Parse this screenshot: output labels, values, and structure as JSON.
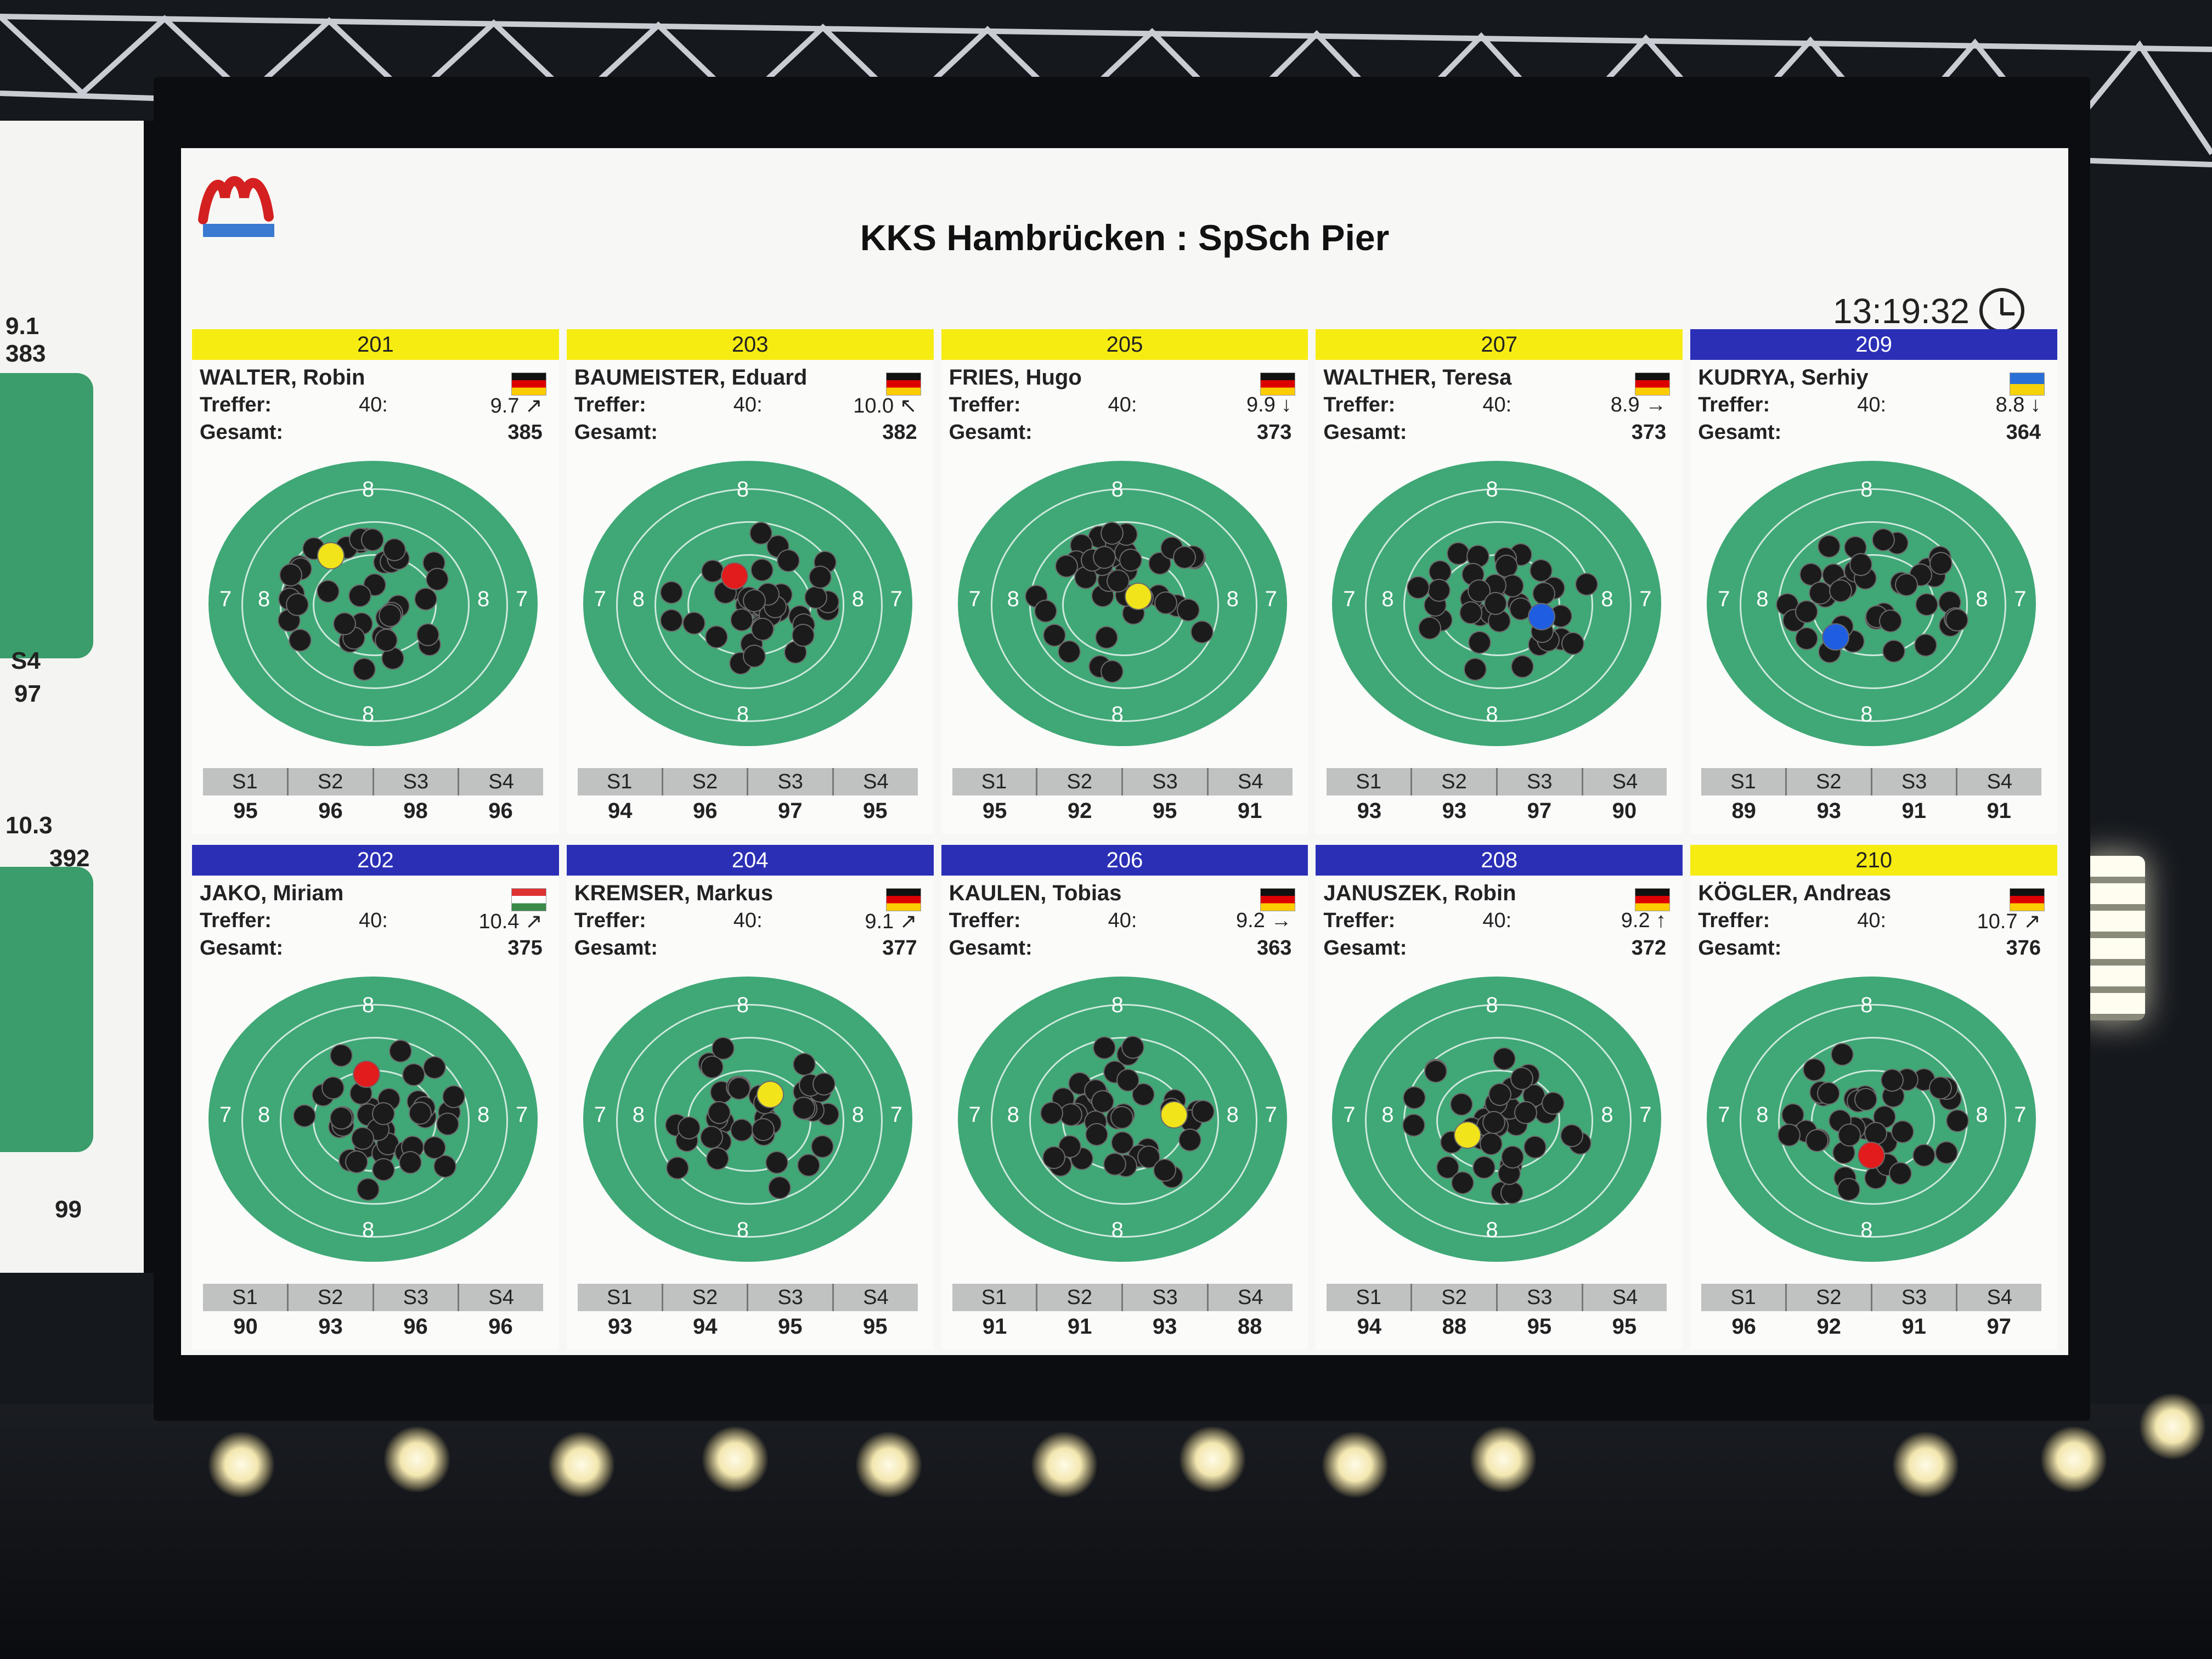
{
  "title": "KKS Hambrücken : SpSch Pier",
  "clock": "13:19:32",
  "series_labels": [
    "S1",
    "S2",
    "S3",
    "S4"
  ],
  "side_screen": {
    "last": "9.1",
    "total1": "383",
    "s4_label": "S4",
    "s4_a": "97",
    "last2": "10.3",
    "total2": "392",
    "s4_b": "99"
  },
  "lanes": [
    {
      "lane": "201",
      "team": "yellow",
      "name": "WALTER, Robin",
      "flag": "DE",
      "hits_label": "Treffer:",
      "hits": "40:",
      "last": "9.7",
      "last_trend": "↗",
      "total_label": "Gesamt:",
      "total": "385",
      "series": [
        "95",
        "96",
        "98",
        "96"
      ],
      "highlight": "#f2e41a"
    },
    {
      "lane": "203",
      "team": "yellow",
      "name": "BAUMEISTER, Eduard",
      "flag": "DE",
      "hits_label": "Treffer:",
      "hits": "40:",
      "last": "10.0",
      "last_trend": "↖",
      "total_label": "Gesamt:",
      "total": "382",
      "series": [
        "94",
        "96",
        "97",
        "95"
      ],
      "highlight": "#e21c1c"
    },
    {
      "lane": "205",
      "team": "yellow",
      "name": "FRIES, Hugo",
      "flag": "DE",
      "hits_label": "Treffer:",
      "hits": "40:",
      "last": "9.9",
      "last_trend": "↓",
      "total_label": "Gesamt:",
      "total": "373",
      "series": [
        "95",
        "92",
        "95",
        "91"
      ],
      "highlight": "#f2e41a"
    },
    {
      "lane": "207",
      "team": "yellow",
      "name": "WALTHER, Teresa",
      "flag": "DE",
      "hits_label": "Treffer:",
      "hits": "40:",
      "last": "8.9",
      "last_trend": "→",
      "total_label": "Gesamt:",
      "total": "373",
      "series": [
        "93",
        "93",
        "97",
        "90"
      ],
      "highlight": "#1f5ee0"
    },
    {
      "lane": "209",
      "team": "blue",
      "name": "KUDRYA, Serhiy",
      "flag": "UA",
      "hits_label": "Treffer:",
      "hits": "40:",
      "last": "8.8",
      "last_trend": "↓",
      "total_label": "Gesamt:",
      "total": "364",
      "series": [
        "89",
        "93",
        "91",
        "91"
      ],
      "highlight": "#1f5ee0"
    },
    {
      "lane": "202",
      "team": "blue",
      "name": "JAKO, Miriam",
      "flag": "HU",
      "hits_label": "Treffer:",
      "hits": "40:",
      "last": "10.4",
      "last_trend": "↗",
      "total_label": "Gesamt:",
      "total": "375",
      "series": [
        "90",
        "93",
        "96",
        "96"
      ],
      "highlight": "#e21c1c"
    },
    {
      "lane": "204",
      "team": "blue",
      "name": "KREMSER, Markus",
      "flag": "DE",
      "hits_label": "Treffer:",
      "hits": "40:",
      "last": "9.1",
      "last_trend": "↗",
      "total_label": "Gesamt:",
      "total": "377",
      "series": [
        "93",
        "94",
        "95",
        "95"
      ],
      "highlight": "#f2e41a"
    },
    {
      "lane": "206",
      "team": "blue",
      "name": "KAULEN, Tobias",
      "flag": "DE",
      "hits_label": "Treffer:",
      "hits": "40:",
      "last": "9.2",
      "last_trend": "→",
      "total_label": "Gesamt:",
      "total": "363",
      "series": [
        "91",
        "91",
        "93",
        "88"
      ],
      "highlight": "#f2e41a"
    },
    {
      "lane": "208",
      "team": "blue",
      "name": "JANUSZEK, Robin",
      "flag": "DE",
      "hits_label": "Treffer:",
      "hits": "40:",
      "last": "9.2",
      "last_trend": "↑",
      "total_label": "Gesamt:",
      "total": "372",
      "series": [
        "94",
        "88",
        "95",
        "95"
      ],
      "highlight": "#f2e41a"
    },
    {
      "lane": "210",
      "team": "yellow",
      "name": "KÖGLER, Andreas",
      "flag": "DE",
      "hits_label": "Treffer:",
      "hits": "40:",
      "last": "10.7",
      "last_trend": "↗",
      "total_label": "Gesamt:",
      "total": "376",
      "series": [
        "96",
        "92",
        "91",
        "97"
      ],
      "highlight": "#e21c1c"
    }
  ]
}
